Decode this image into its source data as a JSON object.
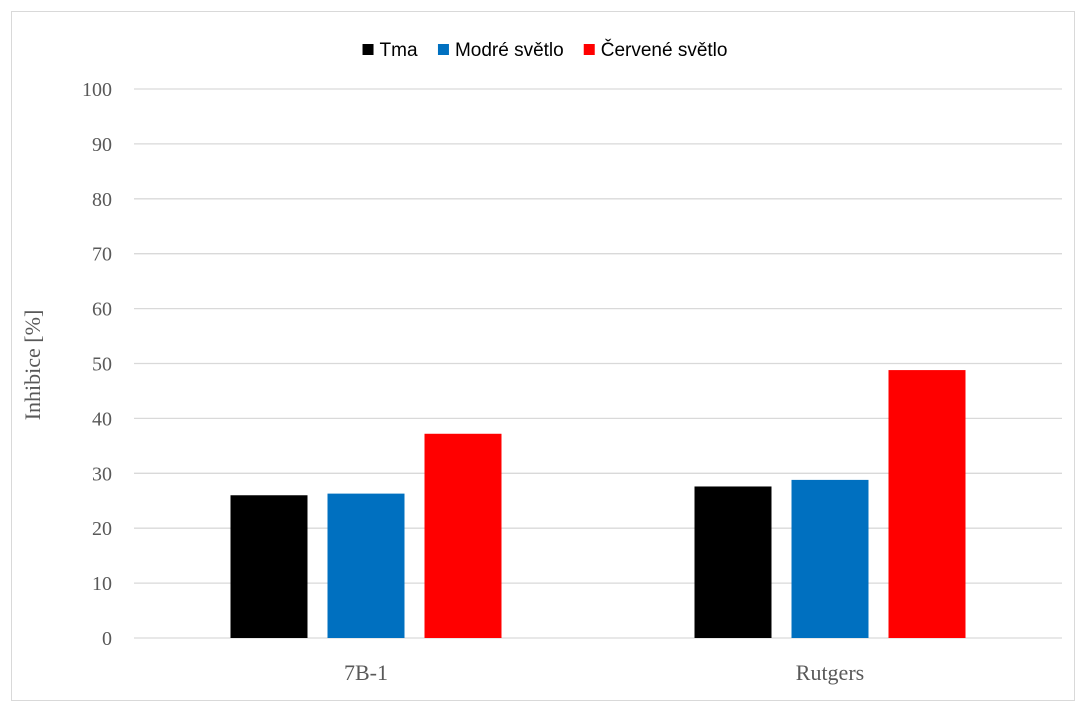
{
  "chart_data": {
    "type": "bar",
    "title": "",
    "xlabel": "",
    "ylabel": "Inhibice [%]",
    "ylim": [
      0,
      100
    ],
    "yticks": [
      0,
      10,
      20,
      30,
      40,
      50,
      60,
      70,
      80,
      90,
      100
    ],
    "grid": true,
    "legend_position": "top",
    "categories": [
      "7B-1",
      "Rutgers"
    ],
    "series": [
      {
        "name": "Tma",
        "color": "#000000",
        "values": [
          26.0,
          27.6
        ]
      },
      {
        "name": "Modré světlo",
        "color": "#0070c0",
        "values": [
          26.3,
          28.8
        ]
      },
      {
        "name": "Červené světlo",
        "color": "#ff0000",
        "values": [
          37.2,
          48.8
        ]
      }
    ]
  }
}
